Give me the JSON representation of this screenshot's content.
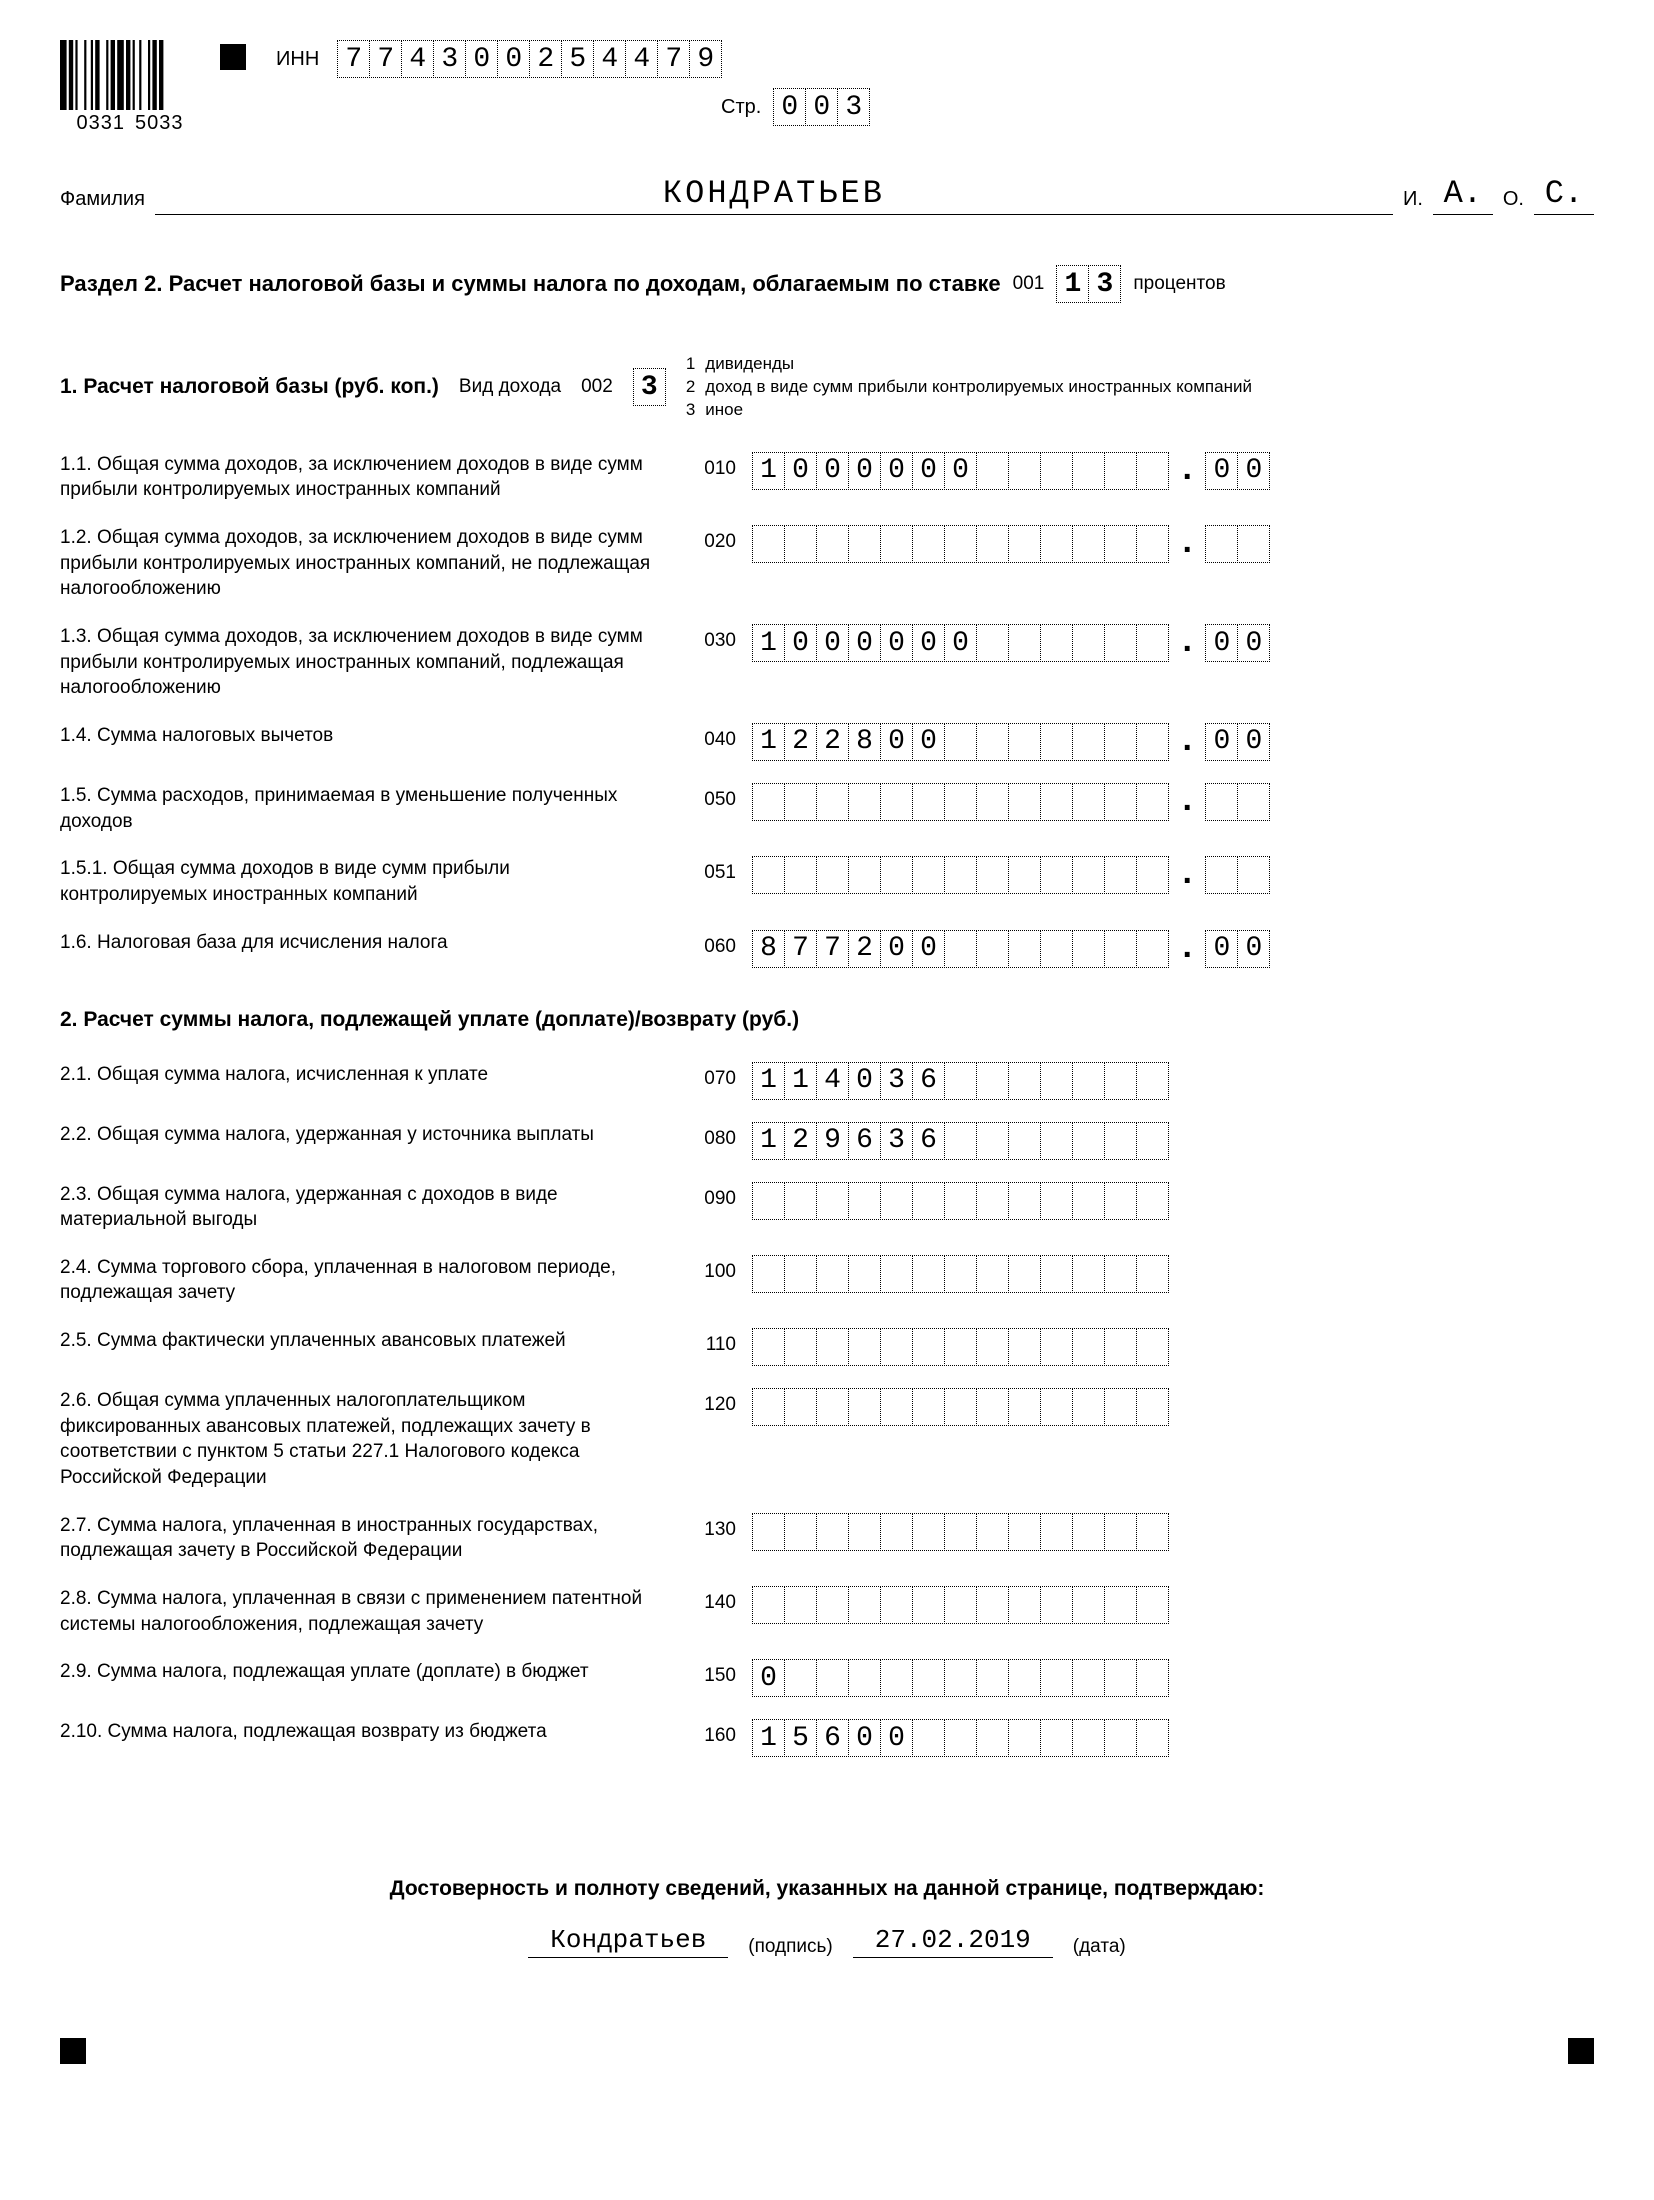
{
  "header": {
    "barcode_left": "0331",
    "barcode_right": "5033",
    "inn_label": "ИНН",
    "inn": "774300254479",
    "page_label": "Стр.",
    "page": "003",
    "surname_label": "Фамилия",
    "surname": "КОНДРАТЬЕВ",
    "initial_i_label": "И.",
    "initial_i": "А.",
    "initial_o_label": "О.",
    "initial_o": "С."
  },
  "section_title": {
    "text": "Раздел 2. Расчет налоговой базы и суммы налога по доходам, облагаемым по ставке",
    "code": "001",
    "rate": "13",
    "suffix": "процентов"
  },
  "sub1": {
    "title": "1. Расчет налоговой базы (руб. коп.)",
    "vid_label": "Вид дохода",
    "vid_code": "002",
    "vid_value": "3",
    "legend": [
      {
        "n": "1",
        "t": "дивиденды"
      },
      {
        "n": "2",
        "t": "доход в виде сумм прибыли контролируемых иностранных компаний"
      },
      {
        "n": "3",
        "t": "иное"
      }
    ]
  },
  "rows1": [
    {
      "label": "1.1. Общая сумма доходов, за исключением доходов в виде сумм прибыли контролируемых иностранных компаний",
      "code": "010",
      "int": "1000000",
      "dec": "00"
    },
    {
      "label": "1.2. Общая сумма доходов, за исключением доходов в виде сумм прибыли контролируемых иностранных компаний, не подлежащая налогообложению",
      "code": "020",
      "int": "",
      "dec": ""
    },
    {
      "label": "1.3. Общая сумма доходов, за исключением доходов в виде сумм прибыли контролируемых иностранных компаний, подлежащая налогообложению",
      "code": "030",
      "int": "1000000",
      "dec": "00"
    },
    {
      "label": "1.4. Сумма налоговых вычетов",
      "code": "040",
      "int": "122800",
      "dec": "00"
    },
    {
      "label": "1.5. Сумма расходов, принимаемая в уменьшение полученных доходов",
      "code": "050",
      "int": "",
      "dec": ""
    },
    {
      "label": "1.5.1. Общая сумма доходов в виде сумм прибыли контролируемых иностранных компаний",
      "code": "051",
      "int": "",
      "dec": ""
    },
    {
      "label": "1.6. Налоговая база для исчисления налога",
      "code": "060",
      "int": "877200",
      "dec": "00"
    }
  ],
  "sub2_title": "2. Расчет суммы налога, подлежащей уплате (доплате)/возврату (руб.)",
  "rows2": [
    {
      "label": "2.1. Общая сумма налога, исчисленная к уплате",
      "code": "070",
      "int": "114036"
    },
    {
      "label": "2.2. Общая сумма налога, удержанная у источника выплаты",
      "code": "080",
      "int": "129636"
    },
    {
      "label": "2.3. Общая сумма налога, удержанная с доходов в виде материальной выгоды",
      "code": "090",
      "int": ""
    },
    {
      "label": "2.4. Сумма торгового сбора, уплаченная в налоговом периоде, подлежащая зачету",
      "code": "100",
      "int": ""
    },
    {
      "label": "2.5. Сумма фактически уплаченных авансовых платежей",
      "code": "110",
      "int": ""
    },
    {
      "label": "2.6. Общая сумма уплаченных налогоплательщиком фиксированных авансовых платежей, подлежащих зачету в соответствии с пунктом 5 статьи 227.1 Налогового кодекса Российской Федерации",
      "code": "120",
      "int": ""
    },
    {
      "label": "2.7. Сумма налога, уплаченная в иностранных государствах, подлежащая зачету в Российской Федерации",
      "code": "130",
      "int": ""
    },
    {
      "label": "2.8. Сумма налога, уплаченная в связи с применением патентной системы налогообложения, подлежащая зачету",
      "code": "140",
      "int": ""
    },
    {
      "label": "2.9. Сумма налога, подлежащая уплате (доплате) в бюджет",
      "code": "150",
      "int": "0"
    },
    {
      "label": "2.10. Сумма налога, подлежащая возврату из бюджета",
      "code": "160",
      "int": "15600"
    }
  ],
  "footer": {
    "title": "Достоверность и полноту сведений, указанных на данной странице, подтверждаю:",
    "signature": "Кондратьев",
    "sign_label": "(подпись)",
    "date": "27.02.2019",
    "date_label": "(дата)"
  },
  "layout": {
    "int_boxes": 13,
    "dec_boxes": 2,
    "colors": {
      "text": "#000000",
      "background": "#ffffff"
    }
  }
}
